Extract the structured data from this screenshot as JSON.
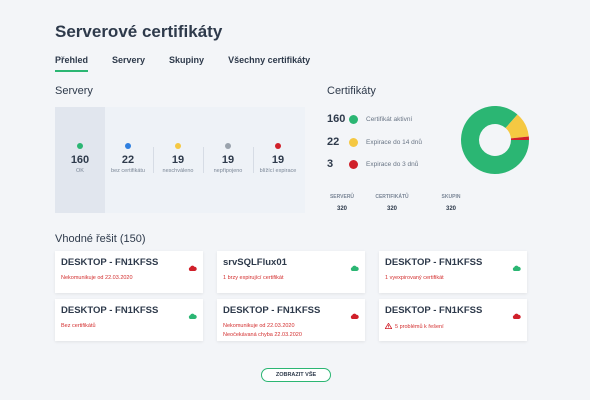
{
  "page": {
    "title": "Serverové certifikáty"
  },
  "tabs": [
    {
      "label": "Přehled",
      "active": true
    },
    {
      "label": "Servery"
    },
    {
      "label": "Skupiny"
    },
    {
      "label": "Všechny certifikáty"
    }
  ],
  "servers": {
    "heading": "Servery",
    "stats": [
      {
        "value": "160",
        "label": "OK",
        "color": "#2bb673"
      },
      {
        "value": "22",
        "label": "bez certifikátu",
        "color": "#2f7fe0"
      },
      {
        "value": "19",
        "label": "neschváleno",
        "color": "#f5c842"
      },
      {
        "value": "19",
        "label": "nepřipojeno",
        "color": "#9aa3ad"
      },
      {
        "value": "19",
        "label": "blížící expirace",
        "color": "#d0202a"
      }
    ]
  },
  "certificates": {
    "heading": "Certifikáty",
    "legend": [
      {
        "value": "160",
        "label": "Certifikát aktivní",
        "color": "#2bb673"
      },
      {
        "value": "22",
        "label": "Expirace do 14 dnů",
        "color": "#f5c842"
      },
      {
        "value": "3",
        "label": "Expirace do 3 dnů",
        "color": "#d0202a"
      }
    ],
    "summary": [
      {
        "key": "SERVERŮ",
        "value": "320"
      },
      {
        "key": "CERTIFIKÁTŮ",
        "value": "320"
      },
      {
        "key": "SKUPIN",
        "value": "320"
      }
    ]
  },
  "issues": {
    "heading": "Vhodné řešit (150)",
    "cards": [
      {
        "name": "DESKTOP - FN1KFSS",
        "cloud": "red",
        "messages": [
          "Nekomunikuje od 22.03.2020"
        ]
      },
      {
        "name": "srvSQLFlux01",
        "cloud": "green",
        "messages": [
          "1 brzy expirující certifikát"
        ]
      },
      {
        "name": "DESKTOP - FN1KFSS",
        "cloud": "green",
        "messages": [
          "1 vyexpirovaný certifikát"
        ]
      },
      {
        "name": "DESKTOP - FN1KFSS",
        "cloud": "green",
        "messages": [
          "Bez certifikátů"
        ]
      },
      {
        "name": "DESKTOP - FN1KFSS",
        "cloud": "red",
        "messages": [
          "Nekomunikuje od 22.03.2020",
          "Neočekávaná chyba 22.03.2020"
        ]
      },
      {
        "name": "DESKTOP - FN1KFSS",
        "cloud": "red",
        "messages": [
          "5 problémů k řešení"
        ],
        "warning": true
      }
    ],
    "show_all": "ZOBRAZIT VŠE"
  },
  "colors": {
    "accent": "#2bb673",
    "error": "#d0202a",
    "text": "#2e3a4b"
  },
  "chart_data": {
    "type": "pie",
    "donut": true,
    "title": "",
    "categories": [
      "Certifikát aktivní",
      "Expirace do 14 dnů",
      "Expirace do 3 dnů"
    ],
    "values": [
      160,
      22,
      3
    ],
    "colors": [
      "#2bb673",
      "#f5c842",
      "#d0202a"
    ]
  }
}
